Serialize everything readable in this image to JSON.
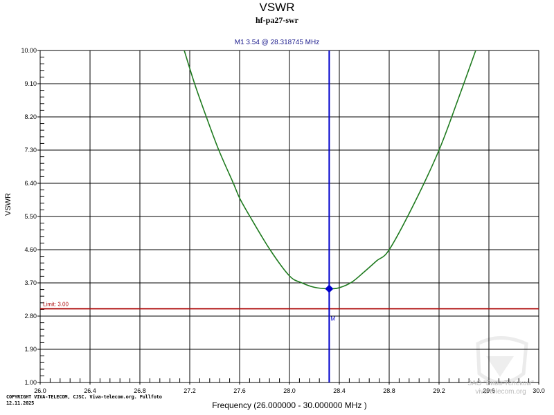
{
  "header": {
    "title": "VSWR",
    "subtitle": "hf-pa27-swr",
    "marker_readout": "M1  3.54 @ 28.318745 MHz"
  },
  "axes": {
    "ylabel": "VSWR",
    "xlabel": "Frequency (26.000000 - 30.000000 MHz )"
  },
  "limit": {
    "label": "Limit: 3.00",
    "value": 3.0,
    "color": "#b01010"
  },
  "marker": {
    "name": "M1",
    "label": "M",
    "frequency_mhz": 28.318745,
    "vswr": 3.54,
    "color": "#0000cc"
  },
  "footer": {
    "copyright_line1": "COPYRIGHT VIVA-TELECOM, CJSC. Viva-telecom.org. Fullfoto",
    "copyright_line2": "12.11.2025",
    "watermark_line1": "ЗАО \"Вива-Телеком\"",
    "watermark_line2": "viva-telecom.org"
  },
  "colors": {
    "trace": "#1e7a1e",
    "grid": "#000000",
    "limit": "#b01010",
    "marker": "#0000cc"
  },
  "chart_data": {
    "type": "line",
    "title": "VSWR",
    "subtitle": "hf-pa27-swr",
    "xlabel": "Frequency (26.000000 - 30.000000 MHz )",
    "ylabel": "VSWR",
    "xlim": [
      26.0,
      30.0
    ],
    "ylim": [
      1.0,
      10.0
    ],
    "grid": true,
    "x_ticks": [
      "26.0",
      "26.4",
      "26.8",
      "27.2",
      "27.6",
      "28.0",
      "28.4",
      "28.8",
      "29.2",
      "29.6",
      "30.0"
    ],
    "y_ticks": [
      "1.00",
      "1.90",
      "2.80",
      "3.70",
      "4.60",
      "5.50",
      "6.40",
      "7.30",
      "8.20",
      "9.10",
      "10.00"
    ],
    "series": [
      {
        "name": "VSWR",
        "color": "#1e7a1e",
        "x": [
          27.156,
          27.239,
          27.333,
          27.433,
          27.55,
          27.6,
          27.683,
          27.844,
          28.0,
          28.1,
          28.2,
          28.319,
          28.4,
          28.5,
          28.6,
          28.7,
          28.8,
          29.0,
          29.2,
          29.35,
          29.494
        ],
        "values": [
          10.0,
          9.1,
          8.2,
          7.3,
          6.4,
          6.0,
          5.5,
          4.6,
          3.89,
          3.7,
          3.58,
          3.54,
          3.57,
          3.72,
          4.0,
          4.3,
          4.6,
          5.85,
          7.3,
          8.65,
          10.0
        ]
      }
    ],
    "annotations": [
      {
        "type": "hline",
        "y": 3.0,
        "label": "Limit: 3.00",
        "color": "#b01010"
      },
      {
        "type": "vline",
        "x": 28.318745,
        "label": "M1",
        "color": "#0000cc"
      },
      {
        "type": "point",
        "x": 28.318745,
        "y": 3.54,
        "label": "M1  3.54 @ 28.318745 MHz"
      }
    ]
  }
}
